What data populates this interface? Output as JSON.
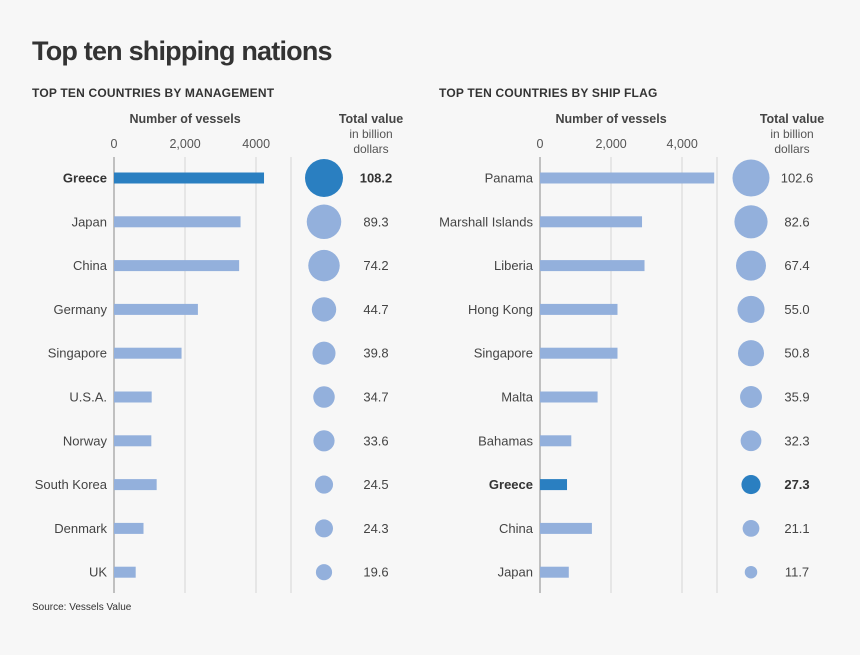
{
  "page": {
    "title": "Top ten shipping nations",
    "source": "Source: Vessels Value"
  },
  "colors": {
    "bar": "#93b0dc",
    "highlight": "#2a7fc1",
    "grid": "#d4d4d4",
    "axis": "#888888"
  },
  "chart_data": [
    {
      "type": "bar",
      "orientation": "horizontal",
      "panel_title": "TOP TEN COUNTRIES BY MANAGEMENT",
      "xlabel": "Number of vessels",
      "xlim": [
        0,
        5000
      ],
      "tick_values": [
        0,
        2000,
        4000
      ],
      "tick_labels": [
        "0",
        "2,000",
        "4000"
      ],
      "value_title": "Total value",
      "value_subtitle": [
        "in billion",
        "dollars"
      ],
      "highlight": "Greece",
      "categories": [
        "Greece",
        "Japan",
        "China",
        "Germany",
        "Singapore",
        "U.S.A.",
        "Norway",
        "South Korea",
        "Denmark",
        "UK"
      ],
      "vessels": [
        4220,
        3560,
        3520,
        2360,
        1900,
        1060,
        1050,
        1200,
        830,
        610
      ],
      "total_value": [
        108.2,
        89.3,
        74.2,
        44.7,
        39.8,
        34.7,
        33.6,
        24.5,
        24.3,
        19.6
      ],
      "total_value_labels": [
        "108.2",
        "89.3",
        "74.2",
        "44.7",
        "39.8",
        "34.7",
        "33.6",
        "24.5",
        "24.3",
        "19.6"
      ]
    },
    {
      "type": "bar",
      "orientation": "horizontal",
      "panel_title": "TOP TEN COUNTRIES BY SHIP FLAG",
      "xlabel": "Number of vessels",
      "xlim": [
        0,
        5000
      ],
      "tick_values": [
        0,
        2000,
        4000
      ],
      "tick_labels": [
        "0",
        "2,000",
        "4,000"
      ],
      "value_title": "Total value",
      "value_subtitle": [
        "in billion",
        "dollars"
      ],
      "highlight": "Greece",
      "categories": [
        "Panama",
        "Marshall Islands",
        "Liberia",
        "Hong Kong",
        "Singapore",
        "Malta",
        "Bahamas",
        "Greece",
        "China",
        "Japan"
      ],
      "vessels": [
        4900,
        2870,
        2940,
        2180,
        2180,
        1620,
        880,
        760,
        1460,
        810
      ],
      "total_value": [
        102.6,
        82.6,
        67.4,
        55.0,
        50.8,
        35.9,
        32.3,
        27.3,
        21.1,
        11.7
      ],
      "total_value_labels": [
        "102.6",
        "82.6",
        "67.4",
        "55.0",
        "50.8",
        "35.9",
        "32.3",
        "27.3",
        "21.1",
        "11.7"
      ]
    }
  ]
}
